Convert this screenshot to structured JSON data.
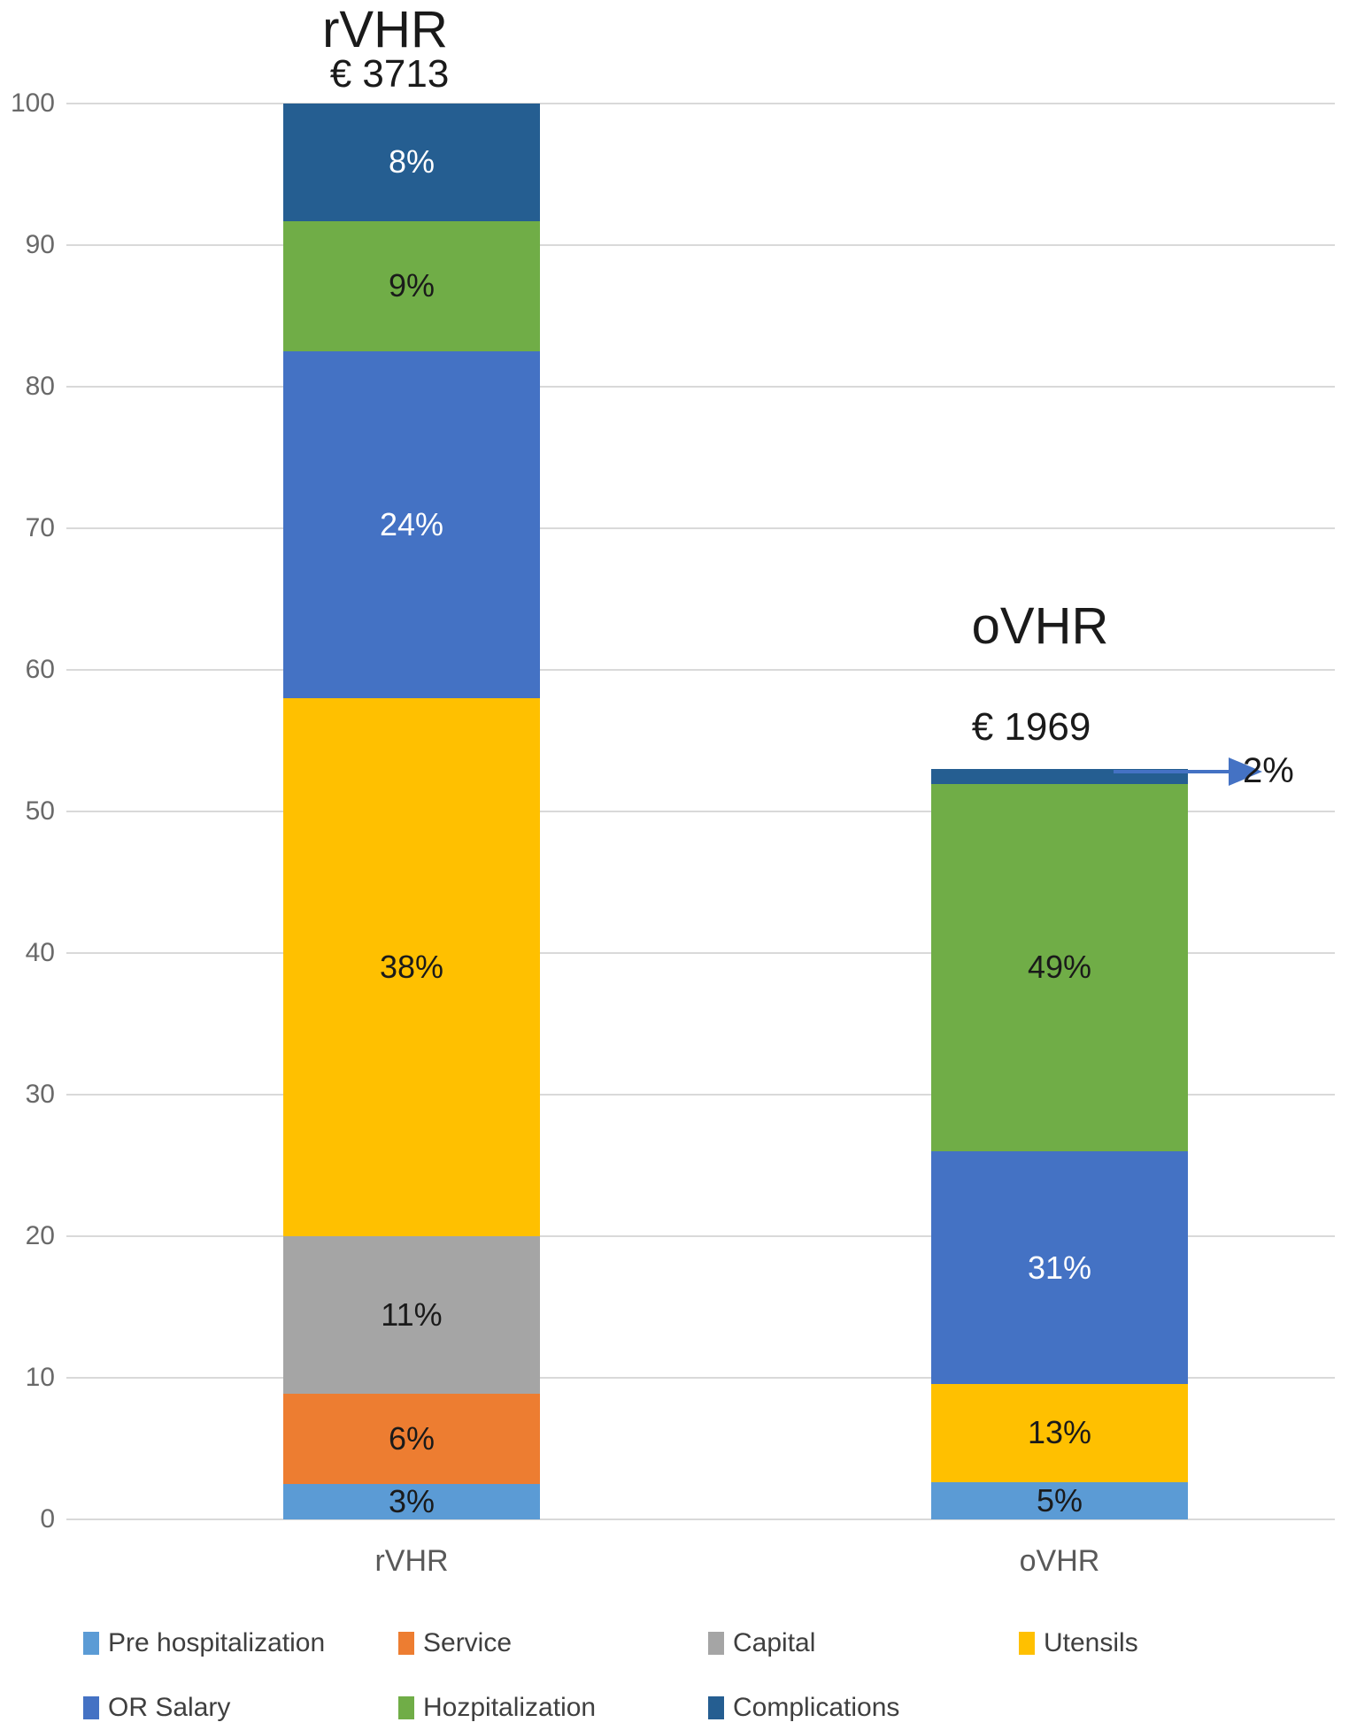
{
  "chart_data": {
    "type": "bar",
    "stacked": true,
    "title": "",
    "xlabel": "",
    "ylabel": "",
    "ylim": [
      0,
      100
    ],
    "yticks": [
      0,
      10,
      20,
      30,
      40,
      50,
      60,
      70,
      80,
      90,
      100
    ],
    "grid": true,
    "legend_position": "bottom",
    "categories": [
      "rVHR",
      "oVHR"
    ],
    "column_headers": [
      {
        "title": "rVHR",
        "total": "€ 3713"
      },
      {
        "title": "oVHR",
        "total": "€ 1969"
      }
    ],
    "series": [
      {
        "name": "Pre hospitalization",
        "color": "#5B9BD5",
        "pct": [
          3,
          5
        ],
        "labels": [
          "3%",
          "5%"
        ],
        "plot": [
          2.5,
          2.65
        ],
        "label_color": [
          "#1a1a1a",
          "#1a1a1a"
        ],
        "label_outside": [
          false,
          false
        ]
      },
      {
        "name": "Service",
        "color": "#ED7D31",
        "pct": [
          6,
          null
        ],
        "labels": [
          "6%",
          null
        ],
        "plot": [
          6.4,
          0
        ],
        "label_color": [
          "#1a1a1a",
          null
        ],
        "label_outside": [
          false,
          false
        ]
      },
      {
        "name": "Capital",
        "color": "#A5A5A5",
        "pct": [
          11,
          null
        ],
        "labels": [
          "11%",
          null
        ],
        "plot": [
          11.1,
          0
        ],
        "label_color": [
          "#1a1a1a",
          null
        ],
        "label_outside": [
          false,
          false
        ]
      },
      {
        "name": "Utensils",
        "color": "#FFC000",
        "pct": [
          38,
          13
        ],
        "labels": [
          "38%",
          "13%"
        ],
        "plot": [
          38.0,
          6.89
        ],
        "label_color": [
          "#1a1a1a",
          "#1a1a1a"
        ],
        "label_outside": [
          false,
          false
        ]
      },
      {
        "name": "OR Salary",
        "color": "#4472C4",
        "pct": [
          24,
          31
        ],
        "labels": [
          "24%",
          "31%"
        ],
        "plot": [
          24.5,
          16.44
        ],
        "label_color": [
          "#ffffff",
          "#ffffff"
        ],
        "label_outside": [
          false,
          false
        ]
      },
      {
        "name": "Hozpitalization",
        "color": "#70AD47",
        "pct": [
          9,
          49
        ],
        "labels": [
          "9%",
          "49%"
        ],
        "plot": [
          9.2,
          25.98
        ],
        "label_color": [
          "#1a1a1a",
          "#1a1a1a"
        ],
        "label_outside": [
          false,
          false
        ]
      },
      {
        "name": "Complications",
        "color": "#255E91",
        "pct": [
          8,
          2
        ],
        "labels": [
          "8%",
          "2%"
        ],
        "plot": [
          8.3,
          1.06
        ],
        "label_color": [
          "#ffffff",
          "#1a1a1a"
        ],
        "label_outside": [
          false,
          true
        ]
      }
    ],
    "annotation": {
      "text": "2%",
      "category": "oVHR",
      "series": "Complications",
      "arrow_color": "#4472C4"
    }
  },
  "legend": {
    "row1": [
      "Pre hospitalization",
      "Service",
      "Capital",
      "Utensils"
    ],
    "row2": [
      "OR Salary",
      "Hozpitalization",
      "Complications"
    ]
  },
  "colors": {
    "gridline": "#d9d9d9",
    "tick_text": "#696969",
    "axis_text": "#595959",
    "legend_text": "#3f3f3f"
  }
}
